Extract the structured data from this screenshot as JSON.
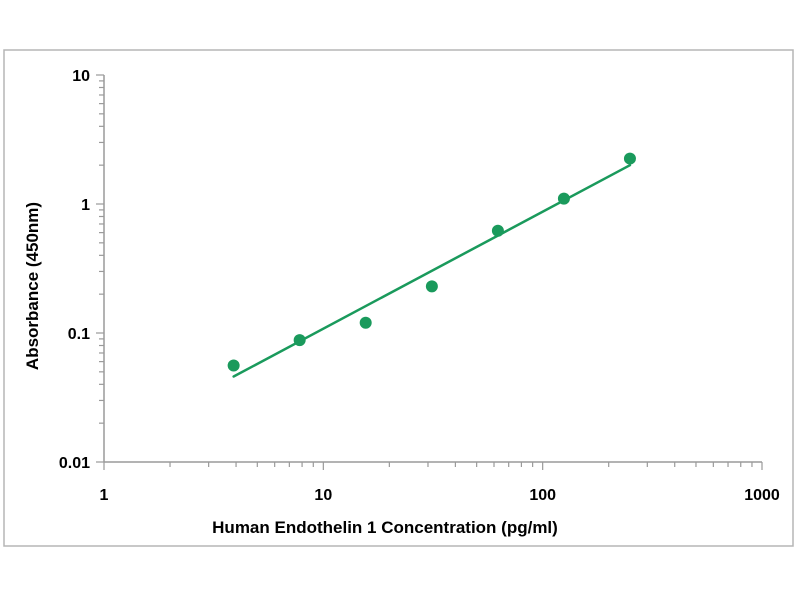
{
  "chart_data": {
    "type": "scatter",
    "title": "",
    "xlabel": "Human Endothelin 1 Concentration (pg/ml)",
    "ylabel": "Absorbance (450nm)",
    "x_scale": "log",
    "y_scale": "log",
    "xlim": [
      1,
      1000
    ],
    "ylim": [
      0.01,
      10
    ],
    "x_ticks": [
      1,
      10,
      100,
      1000
    ],
    "x_tick_labels": [
      "1",
      "10",
      "100",
      "1000"
    ],
    "y_ticks": [
      0.01,
      0.1,
      1,
      10
    ],
    "y_tick_labels": [
      "0.01",
      "0.1",
      "1",
      "10"
    ],
    "grid": false,
    "legend": "none",
    "series": [
      {
        "kind": "points",
        "x": [
          3.9,
          7.8,
          15.6,
          31.25,
          62.5,
          125,
          250
        ],
        "y": [
          0.056,
          0.088,
          0.12,
          0.23,
          0.62,
          1.1,
          2.25
        ]
      },
      {
        "kind": "fit-line",
        "x": [
          3.9,
          250
        ],
        "y": [
          0.046,
          2.0
        ]
      }
    ],
    "colors": {
      "marker": "#1a9a5c",
      "line": "#1a9a5c",
      "axis": "#9a9a9a",
      "border": "#b5b5b5"
    }
  }
}
